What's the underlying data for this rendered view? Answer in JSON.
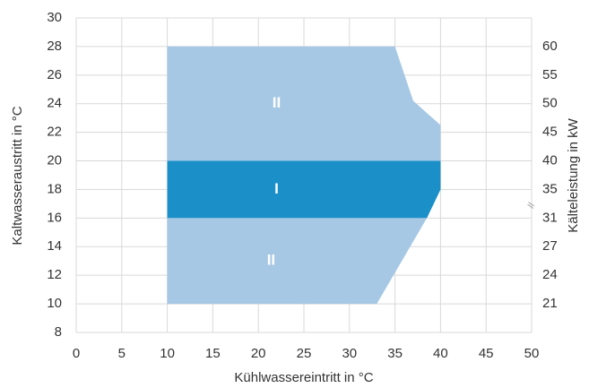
{
  "chart_data": {
    "type": "region",
    "x_label": "Kühlwassereintritt in °C",
    "y_label": "Kaltwasseraustritt in °C",
    "y2_label": "Kälteleistung in kW",
    "axis_break": "//",
    "xlim": [
      0,
      50
    ],
    "xticks": [
      0,
      5,
      10,
      15,
      20,
      25,
      30,
      35,
      40,
      45,
      50
    ],
    "ylim": [
      8,
      30
    ],
    "yticks": [
      8,
      10,
      12,
      14,
      16,
      18,
      20,
      22,
      24,
      26,
      28,
      30
    ],
    "y2ticks": [
      60,
      55,
      50,
      45,
      40,
      35,
      31,
      27,
      24,
      21
    ],
    "y2_at": [
      28,
      26,
      24,
      22,
      20,
      18,
      16,
      14,
      12,
      10
    ],
    "grid": true,
    "regions": [
      {
        "name": "II",
        "color": "#a6c8e5",
        "x": [
          10,
          10,
          35,
          37,
          40,
          40
        ],
        "y": [
          20,
          28,
          28,
          24.2,
          22.5,
          20
        ]
      },
      {
        "name": "I",
        "color": "#1a8fc8",
        "x": [
          10,
          10,
          40,
          40,
          38.5
        ],
        "y": [
          16,
          20,
          20,
          18,
          16
        ]
      },
      {
        "name": "II",
        "color": "#a6c8e5",
        "x": [
          10,
          10,
          38.5,
          33
        ],
        "y": [
          10,
          16,
          16,
          10
        ]
      }
    ]
  }
}
